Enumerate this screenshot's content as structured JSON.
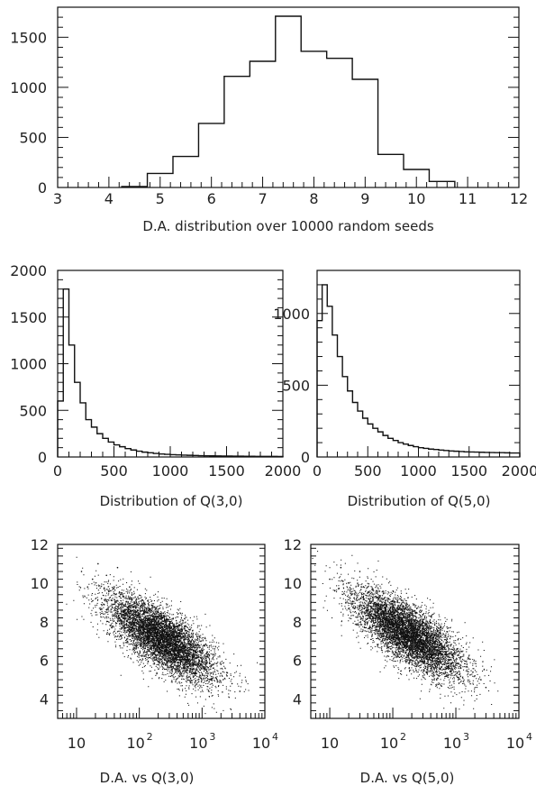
{
  "chart_data": [
    {
      "id": "da_hist",
      "type": "bar",
      "style": "step-histogram",
      "xlabel": "D.A. distribution over 10000 random seeds",
      "ylabel": "",
      "xlim": [
        3,
        12
      ],
      "ylim": [
        0,
        1800
      ],
      "xticks": [
        3,
        4,
        5,
        6,
        7,
        8,
        9,
        10,
        11,
        12
      ],
      "yticks": [
        0,
        500,
        1000,
        1500
      ],
      "bin_edges": [
        4.25,
        4.75,
        5.25,
        5.75,
        6.25,
        6.75,
        7.25,
        7.75,
        8.25,
        8.75,
        9.25,
        9.75,
        10.25,
        10.75
      ],
      "values": [
        10,
        140,
        310,
        640,
        1110,
        1260,
        1710,
        1360,
        1290,
        1080,
        330,
        180,
        60
      ]
    },
    {
      "id": "q30_hist",
      "type": "bar",
      "style": "step-histogram",
      "xlabel": "Distribution of Q(3,0)",
      "ylabel": "",
      "xlim": [
        0,
        2000
      ],
      "ylim": [
        0,
        2000
      ],
      "xticks": [
        0,
        500,
        1000,
        1500,
        2000
      ],
      "yticks": [
        0,
        500,
        1000,
        1500,
        2000
      ],
      "bin_edges": [
        0,
        50,
        100,
        150,
        200,
        250,
        300,
        350,
        400,
        450,
        500,
        550,
        600,
        650,
        700,
        750,
        800,
        850,
        900,
        950,
        1000,
        1050,
        1100,
        1150,
        1200,
        1250,
        1300,
        1350,
        1400,
        1450,
        1500,
        1550,
        1600,
        1650,
        1700,
        1750,
        1800,
        1850,
        1900,
        1950,
        2000
      ],
      "values": [
        600,
        1800,
        1200,
        800,
        580,
        400,
        320,
        250,
        200,
        160,
        130,
        110,
        90,
        75,
        62,
        52,
        45,
        38,
        32,
        28,
        25,
        22,
        20,
        18,
        16,
        14,
        13,
        12,
        11,
        10,
        10,
        9,
        9,
        8,
        8,
        7,
        7,
        6,
        6,
        5
      ]
    },
    {
      "id": "q50_hist",
      "type": "bar",
      "style": "step-histogram",
      "xlabel": "Distribution of Q(5,0)",
      "ylabel": "",
      "xlim": [
        0,
        2000
      ],
      "ylim": [
        0,
        1300
      ],
      "xticks": [
        0,
        500,
        1000,
        1500,
        2000
      ],
      "yticks": [
        0,
        500,
        1000
      ],
      "bin_edges": [
        0,
        50,
        100,
        150,
        200,
        250,
        300,
        350,
        400,
        450,
        500,
        550,
        600,
        650,
        700,
        750,
        800,
        850,
        900,
        950,
        1000,
        1050,
        1100,
        1150,
        1200,
        1250,
        1300,
        1350,
        1400,
        1450,
        1500,
        1550,
        1600,
        1650,
        1700,
        1750,
        1800,
        1850,
        1900,
        1950,
        2000
      ],
      "values": [
        950,
        1200,
        1050,
        850,
        700,
        560,
        460,
        380,
        320,
        270,
        230,
        200,
        175,
        150,
        130,
        115,
        100,
        90,
        80,
        72,
        65,
        60,
        55,
        52,
        48,
        45,
        42,
        40,
        38,
        36,
        35,
        34,
        33,
        32,
        31,
        30,
        30,
        29,
        28,
        28
      ]
    },
    {
      "id": "da_vs_q30",
      "type": "scatter",
      "xlabel": "D.A. vs Q(3,0)",
      "ylabel": "",
      "xscale": "log",
      "xlim": [
        5,
        10000
      ],
      "ylim": [
        3,
        12
      ],
      "xticks": [
        {
          "value": 10,
          "label": "10"
        },
        {
          "value": 100,
          "base": "10",
          "exp": "2"
        },
        {
          "value": 1000,
          "base": "10",
          "exp": "3"
        },
        {
          "value": 10000,
          "base": "10",
          "exp": "4"
        }
      ],
      "yticks": [
        4,
        6,
        8,
        10,
        12
      ],
      "relation": "dense cloud, D.A. decreases with log Q",
      "density_centers": [
        [
          60,
          9.0
        ],
        [
          120,
          8.2
        ],
        [
          250,
          7.5
        ],
        [
          500,
          6.8
        ],
        [
          900,
          6.3
        ],
        [
          2000,
          5.4
        ]
      ],
      "points": [
        [
          12,
          10.6
        ],
        [
          15,
          9.8
        ],
        [
          18,
          10.2
        ],
        [
          22,
          11.0
        ],
        [
          25,
          9.2
        ],
        [
          30,
          10.4
        ],
        [
          35,
          9.6
        ],
        [
          40,
          8.9
        ],
        [
          45,
          10.8
        ],
        [
          50,
          9.4
        ],
        [
          60,
          8.6
        ],
        [
          70,
          9.8
        ],
        [
          80,
          8.2
        ],
        [
          90,
          9.0
        ],
        [
          100,
          8.4
        ],
        [
          120,
          7.8
        ],
        [
          150,
          8.6
        ],
        [
          180,
          7.4
        ],
        [
          200,
          8.0
        ],
        [
          250,
          7.2
        ],
        [
          300,
          7.8
        ],
        [
          350,
          6.8
        ],
        [
          400,
          7.4
        ],
        [
          500,
          6.6
        ],
        [
          600,
          7.0
        ],
        [
          700,
          6.2
        ],
        [
          800,
          6.8
        ],
        [
          1000,
          6.0
        ],
        [
          1200,
          6.4
        ],
        [
          1500,
          5.6
        ],
        [
          2000,
          5.8
        ],
        [
          2500,
          5.2
        ],
        [
          3000,
          4.8
        ],
        [
          4000,
          4.4
        ]
      ]
    },
    {
      "id": "da_vs_q50",
      "type": "scatter",
      "xlabel": "D.A. vs Q(5,0)",
      "ylabel": "",
      "xscale": "log",
      "xlim": [
        5,
        10000
      ],
      "ylim": [
        3,
        12
      ],
      "xticks": [
        {
          "value": 10,
          "label": "10"
        },
        {
          "value": 100,
          "base": "10",
          "exp": "2"
        },
        {
          "value": 1000,
          "base": "10",
          "exp": "3"
        },
        {
          "value": 10000,
          "base": "10",
          "exp": "4"
        }
      ],
      "yticks": [
        4,
        6,
        8,
        10,
        12
      ],
      "relation": "dense cloud, D.A. decreases with log Q",
      "density_centers": [
        [
          50,
          9.2
        ],
        [
          100,
          8.5
        ],
        [
          200,
          7.8
        ],
        [
          400,
          7.1
        ],
        [
          800,
          6.5
        ],
        [
          1500,
          5.8
        ]
      ],
      "points": [
        [
          10,
          10.2
        ],
        [
          12,
          9.6
        ],
        [
          15,
          10.8
        ],
        [
          18,
          9.0
        ],
        [
          20,
          10.0
        ],
        [
          25,
          9.4
        ],
        [
          30,
          10.6
        ],
        [
          35,
          8.8
        ],
        [
          40,
          9.8
        ],
        [
          50,
          8.4
        ],
        [
          60,
          9.2
        ],
        [
          70,
          8.0
        ],
        [
          80,
          8.8
        ],
        [
          100,
          7.8
        ],
        [
          120,
          8.4
        ],
        [
          150,
          7.4
        ],
        [
          180,
          8.0
        ],
        [
          200,
          7.0
        ],
        [
          250,
          7.6
        ],
        [
          300,
          6.8
        ],
        [
          400,
          7.2
        ],
        [
          500,
          6.4
        ],
        [
          600,
          6.8
        ],
        [
          800,
          6.0
        ],
        [
          1000,
          6.4
        ],
        [
          1200,
          5.6
        ],
        [
          1500,
          5.8
        ],
        [
          2000,
          5.2
        ],
        [
          2500,
          5.0
        ],
        [
          3000,
          4.6
        ]
      ]
    }
  ]
}
